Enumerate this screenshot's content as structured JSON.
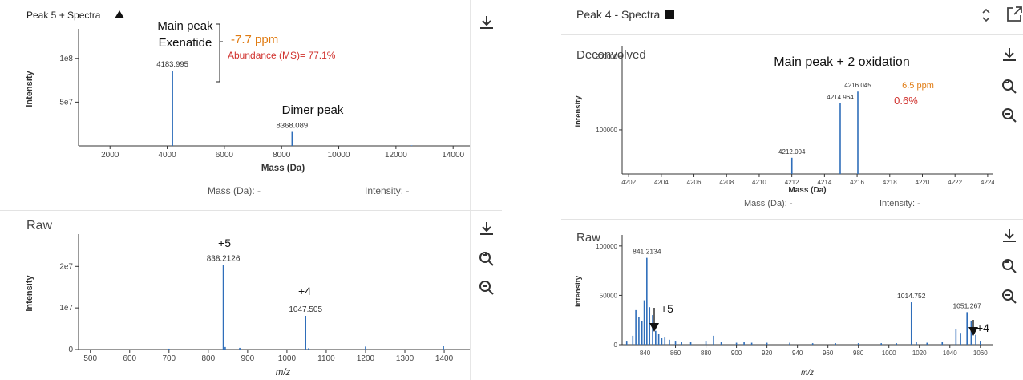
{
  "left": {
    "decon": {
      "title": "Peak 5 + Spectra",
      "xlabel": "Mass (Da)",
      "ylabel": "Intensity",
      "readout_mass": "Mass (Da): -",
      "readout_intensity": "Intensity: -",
      "annot": {
        "main_peak": "Main peak",
        "exenatide": "Exenatide",
        "ppm": "-7.7 ppm",
        "abundance": "Abundance (MS)= 77.1%",
        "dimer": "Dimer peak"
      }
    },
    "raw": {
      "title": "Raw",
      "xlabel": "m/z",
      "ylabel": "Intensity",
      "annot": {
        "plus5": "+5",
        "plus4": "+4"
      }
    }
  },
  "right": {
    "header": {
      "title": "Peak 4 - Spectra"
    },
    "decon": {
      "title": "Deconvolved",
      "xlabel": "Mass (Da)",
      "ylabel": "Intensity",
      "readout_mass": "Mass (Da): -",
      "readout_intensity": "Intensity: -",
      "annot": {
        "main": "Main peak + 2 oxidation",
        "ppm": "6.5 ppm",
        "pct": "0.6%"
      }
    },
    "raw": {
      "title": "Raw",
      "xlabel": "m/z",
      "ylabel": "Intensity",
      "annot": {
        "plus5": "+5",
        "plus4": "+4"
      }
    }
  },
  "colors": {
    "line": "#2f6eba",
    "ppm": "#e07b12",
    "abund": "#d0312d",
    "axis": "#333"
  },
  "icons": [
    "download-icon",
    "zoom-reset-icon",
    "zoom-out-icon",
    "expand-icon",
    "sort-icon",
    "triangle-icon",
    "square-icon"
  ],
  "chart_data": [
    {
      "id": "left-decon",
      "type": "line",
      "xlim": [
        900,
        15200
      ],
      "ylim": [
        0,
        130000000
      ],
      "xticks": [
        2000,
        4000,
        6000,
        8000,
        10000,
        12000,
        14000
      ],
      "xtick_labels": [
        "2000",
        "4000",
        "6000",
        "8000",
        "10000",
        "12000",
        "14000"
      ],
      "yticks": [
        50000000,
        100000000
      ],
      "ytick_labels": [
        "5e7",
        "1e8"
      ],
      "peaks": [
        {
          "x": 4183.995,
          "y": 86000000,
          "label": "4183.995"
        },
        {
          "x": 8368.089,
          "y": 16000000,
          "label": "8368.089"
        },
        {
          "x": 12552,
          "y": 600000
        }
      ]
    },
    {
      "id": "left-raw",
      "type": "line",
      "xlim": [
        470,
        1510
      ],
      "ylim": [
        0,
        27000000
      ],
      "xticks": [
        500,
        600,
        700,
        800,
        900,
        1000,
        1100,
        1200,
        1300,
        1400,
        1500
      ],
      "xtick_labels": [
        "500",
        "600",
        "700",
        "800",
        "900",
        "1000",
        "1100",
        "1200",
        "1300",
        "1400",
        "1500"
      ],
      "yticks": [
        0,
        10000000,
        20000000
      ],
      "ytick_labels": [
        "0",
        "1e7",
        "2e7"
      ],
      "peaks": [
        {
          "x": 838.2126,
          "y": 20300000,
          "label": "838.2126"
        },
        {
          "x": 1047.505,
          "y": 8100000,
          "label": "1047.505"
        },
        {
          "x": 843,
          "y": 600000
        },
        {
          "x": 880,
          "y": 400000
        },
        {
          "x": 700,
          "y": 200000
        },
        {
          "x": 1200,
          "y": 700000
        },
        {
          "x": 1398,
          "y": 800000
        },
        {
          "x": 1055,
          "y": 300000
        }
      ]
    },
    {
      "id": "right-decon",
      "type": "line",
      "xlim": [
        4201.6,
        4224.3
      ],
      "ylim": [
        40000,
        210000
      ],
      "xticks": [
        4202,
        4204,
        4206,
        4208,
        4210,
        4212,
        4214,
        4216,
        4218,
        4220,
        4222,
        4224
      ],
      "xtick_labels": [
        "4202",
        "4204",
        "4206",
        "4208",
        "4210",
        "4212",
        "4214",
        "4216",
        "4218",
        "4220",
        "4222",
        "4224"
      ],
      "yticks": [
        100000,
        200000
      ],
      "ytick_labels": [
        "100000",
        "200000"
      ],
      "peaks": [
        {
          "x": 4212.004,
          "y": 62000,
          "label": "4212.004"
        },
        {
          "x": 4214.964,
          "y": 136000,
          "label": "4214.964"
        },
        {
          "x": 4216.045,
          "y": 152000,
          "label": "4216.045"
        }
      ]
    },
    {
      "id": "right-raw",
      "type": "line",
      "xlim": [
        825,
        1068
      ],
      "ylim": [
        0,
        108000
      ],
      "xticks": [
        840,
        860,
        880,
        900,
        920,
        940,
        960,
        980,
        1000,
        1020,
        1040,
        1060
      ],
      "xtick_labels": [
        "840",
        "860",
        "880",
        "900",
        "920",
        "940",
        "960",
        "980",
        "1000",
        "1020",
        "1040",
        "1060"
      ],
      "yticks": [
        0,
        50000,
        100000
      ],
      "ytick_labels": [
        "0",
        "50000",
        "100000"
      ],
      "peaks": [
        {
          "x": 841.2134,
          "y": 88000,
          "label": "841.2134"
        },
        {
          "x": 828,
          "y": 4000
        },
        {
          "x": 832,
          "y": 9000
        },
        {
          "x": 834,
          "y": 35000
        },
        {
          "x": 836,
          "y": 28000
        },
        {
          "x": 838,
          "y": 24000
        },
        {
          "x": 839.5,
          "y": 45000
        },
        {
          "x": 843,
          "y": 38000
        },
        {
          "x": 845,
          "y": 30000
        },
        {
          "x": 847,
          "y": 14000
        },
        {
          "x": 849,
          "y": 11000
        },
        {
          "x": 851,
          "y": 7000
        },
        {
          "x": 853,
          "y": 8000
        },
        {
          "x": 856,
          "y": 5000
        },
        {
          "x": 860,
          "y": 4000
        },
        {
          "x": 864,
          "y": 3000
        },
        {
          "x": 870,
          "y": 3000
        },
        {
          "x": 880,
          "y": 4000
        },
        {
          "x": 885,
          "y": 9000
        },
        {
          "x": 890,
          "y": 3000
        },
        {
          "x": 900,
          "y": 2000
        },
        {
          "x": 905,
          "y": 3000
        },
        {
          "x": 910,
          "y": 2000
        },
        {
          "x": 920,
          "y": 2000
        },
        {
          "x": 935,
          "y": 2000
        },
        {
          "x": 950,
          "y": 1500
        },
        {
          "x": 965,
          "y": 1500
        },
        {
          "x": 980,
          "y": 1500
        },
        {
          "x": 995,
          "y": 1500
        },
        {
          "x": 1005,
          "y": 1500
        },
        {
          "x": 1014.752,
          "y": 43000,
          "label": "1014.752"
        },
        {
          "x": 1018,
          "y": 3000
        },
        {
          "x": 1025,
          "y": 2000
        },
        {
          "x": 1035,
          "y": 3000
        },
        {
          "x": 1044,
          "y": 16000
        },
        {
          "x": 1047,
          "y": 12000
        },
        {
          "x": 1051.267,
          "y": 33000,
          "label": "1051.267"
        },
        {
          "x": 1054,
          "y": 24000
        },
        {
          "x": 1057,
          "y": 10000
        },
        {
          "x": 1060,
          "y": 4000
        }
      ]
    }
  ]
}
